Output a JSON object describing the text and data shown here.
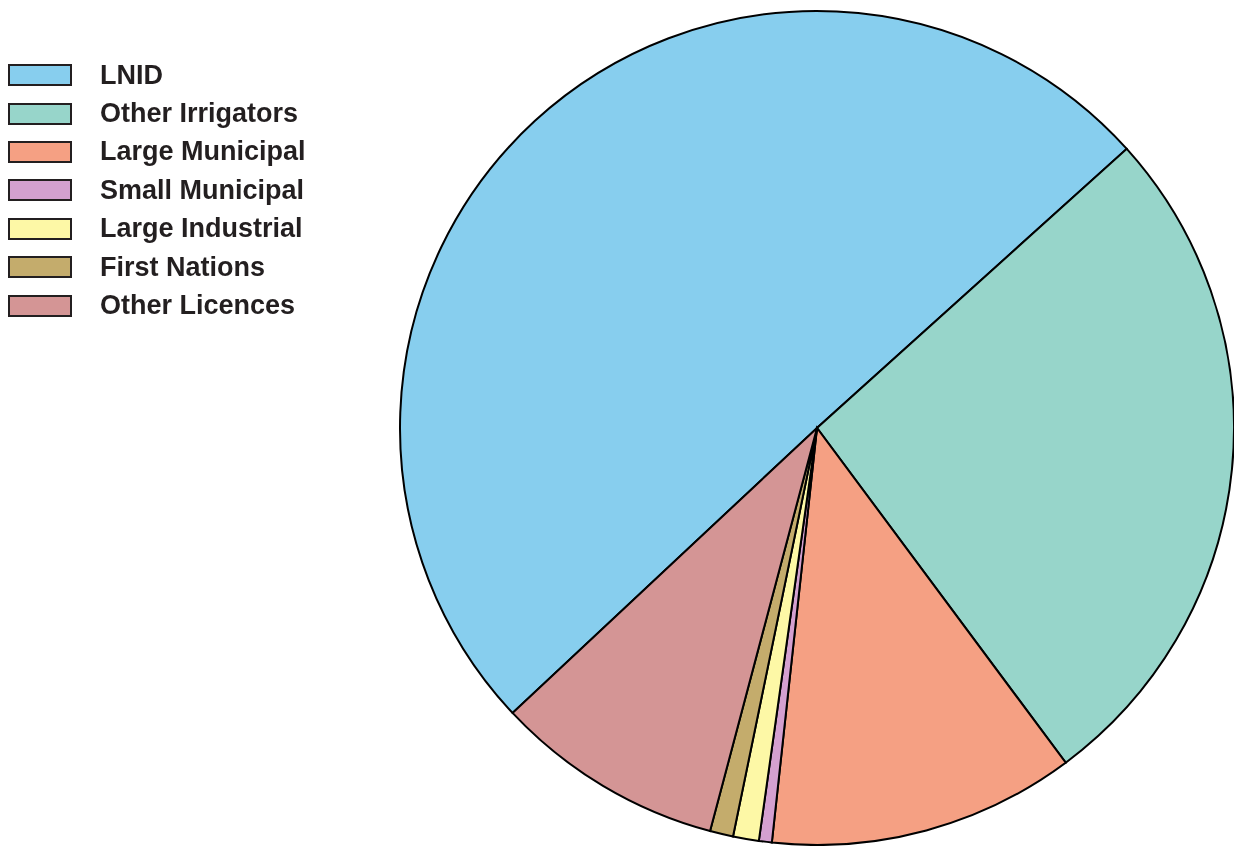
{
  "chart_data": {
    "type": "pie",
    "categories": [
      "LNID",
      "Other Irrigators",
      "Large Municipal",
      "Small Municipal",
      "Large Industrial",
      "First Nations",
      "Other Licences"
    ],
    "values": [
      50.3,
      26.5,
      11.9,
      0.5,
      1.0,
      0.9,
      8.9
    ],
    "colors": [
      "#87ceee",
      "#97d5ca",
      "#f5a083",
      "#d4a0d0",
      "#fdf8a6",
      "#c4ac6c",
      "#d49595"
    ],
    "legend": "top left"
  }
}
